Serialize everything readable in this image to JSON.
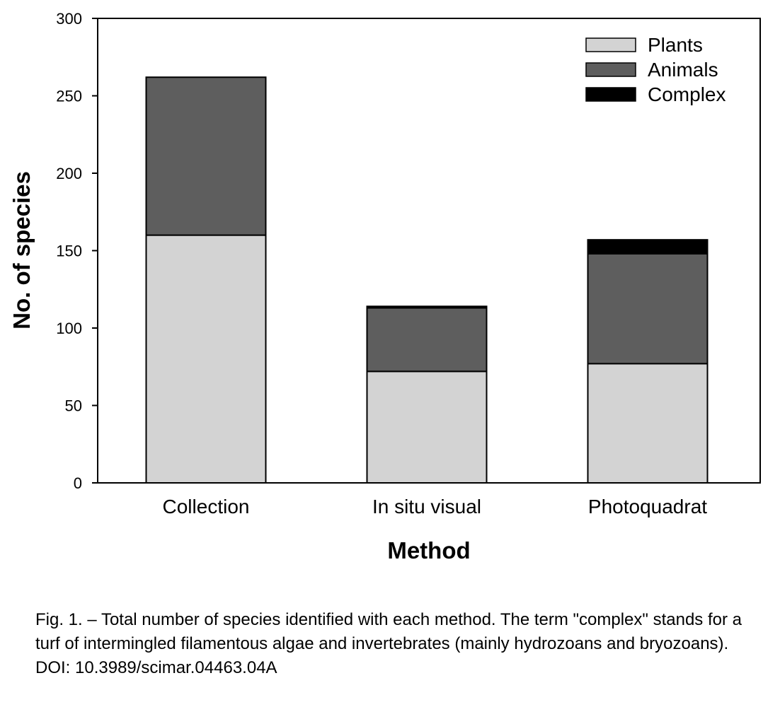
{
  "chart_data": {
    "type": "bar",
    "stacked": true,
    "categories": [
      "Collection",
      "In situ visual",
      "Photoquadrat"
    ],
    "series": [
      {
        "name": "Plants",
        "values": [
          160,
          72,
          77
        ],
        "color": "#d3d3d3"
      },
      {
        "name": "Animals",
        "values": [
          102,
          41,
          71
        ],
        "color": "#5e5e5e"
      },
      {
        "name": "Complex",
        "values": [
          0,
          1,
          9
        ],
        "color": "#000000"
      }
    ],
    "xlabel": "Method",
    "ylabel": "No. of species",
    "ylim": [
      0,
      300
    ],
    "yticks": [
      "0",
      "50",
      "100",
      "150",
      "200",
      "250",
      "300"
    ],
    "grid": false,
    "legend_position": "top-right"
  },
  "caption": "Fig. 1. – Total number of species identified with each method. The term \"complex\" stands for a turf of intermingled filamentous algae and invertebrates (mainly hydrozoans and bryozoans). DOI: 10.3989/scimar.04463.04A"
}
